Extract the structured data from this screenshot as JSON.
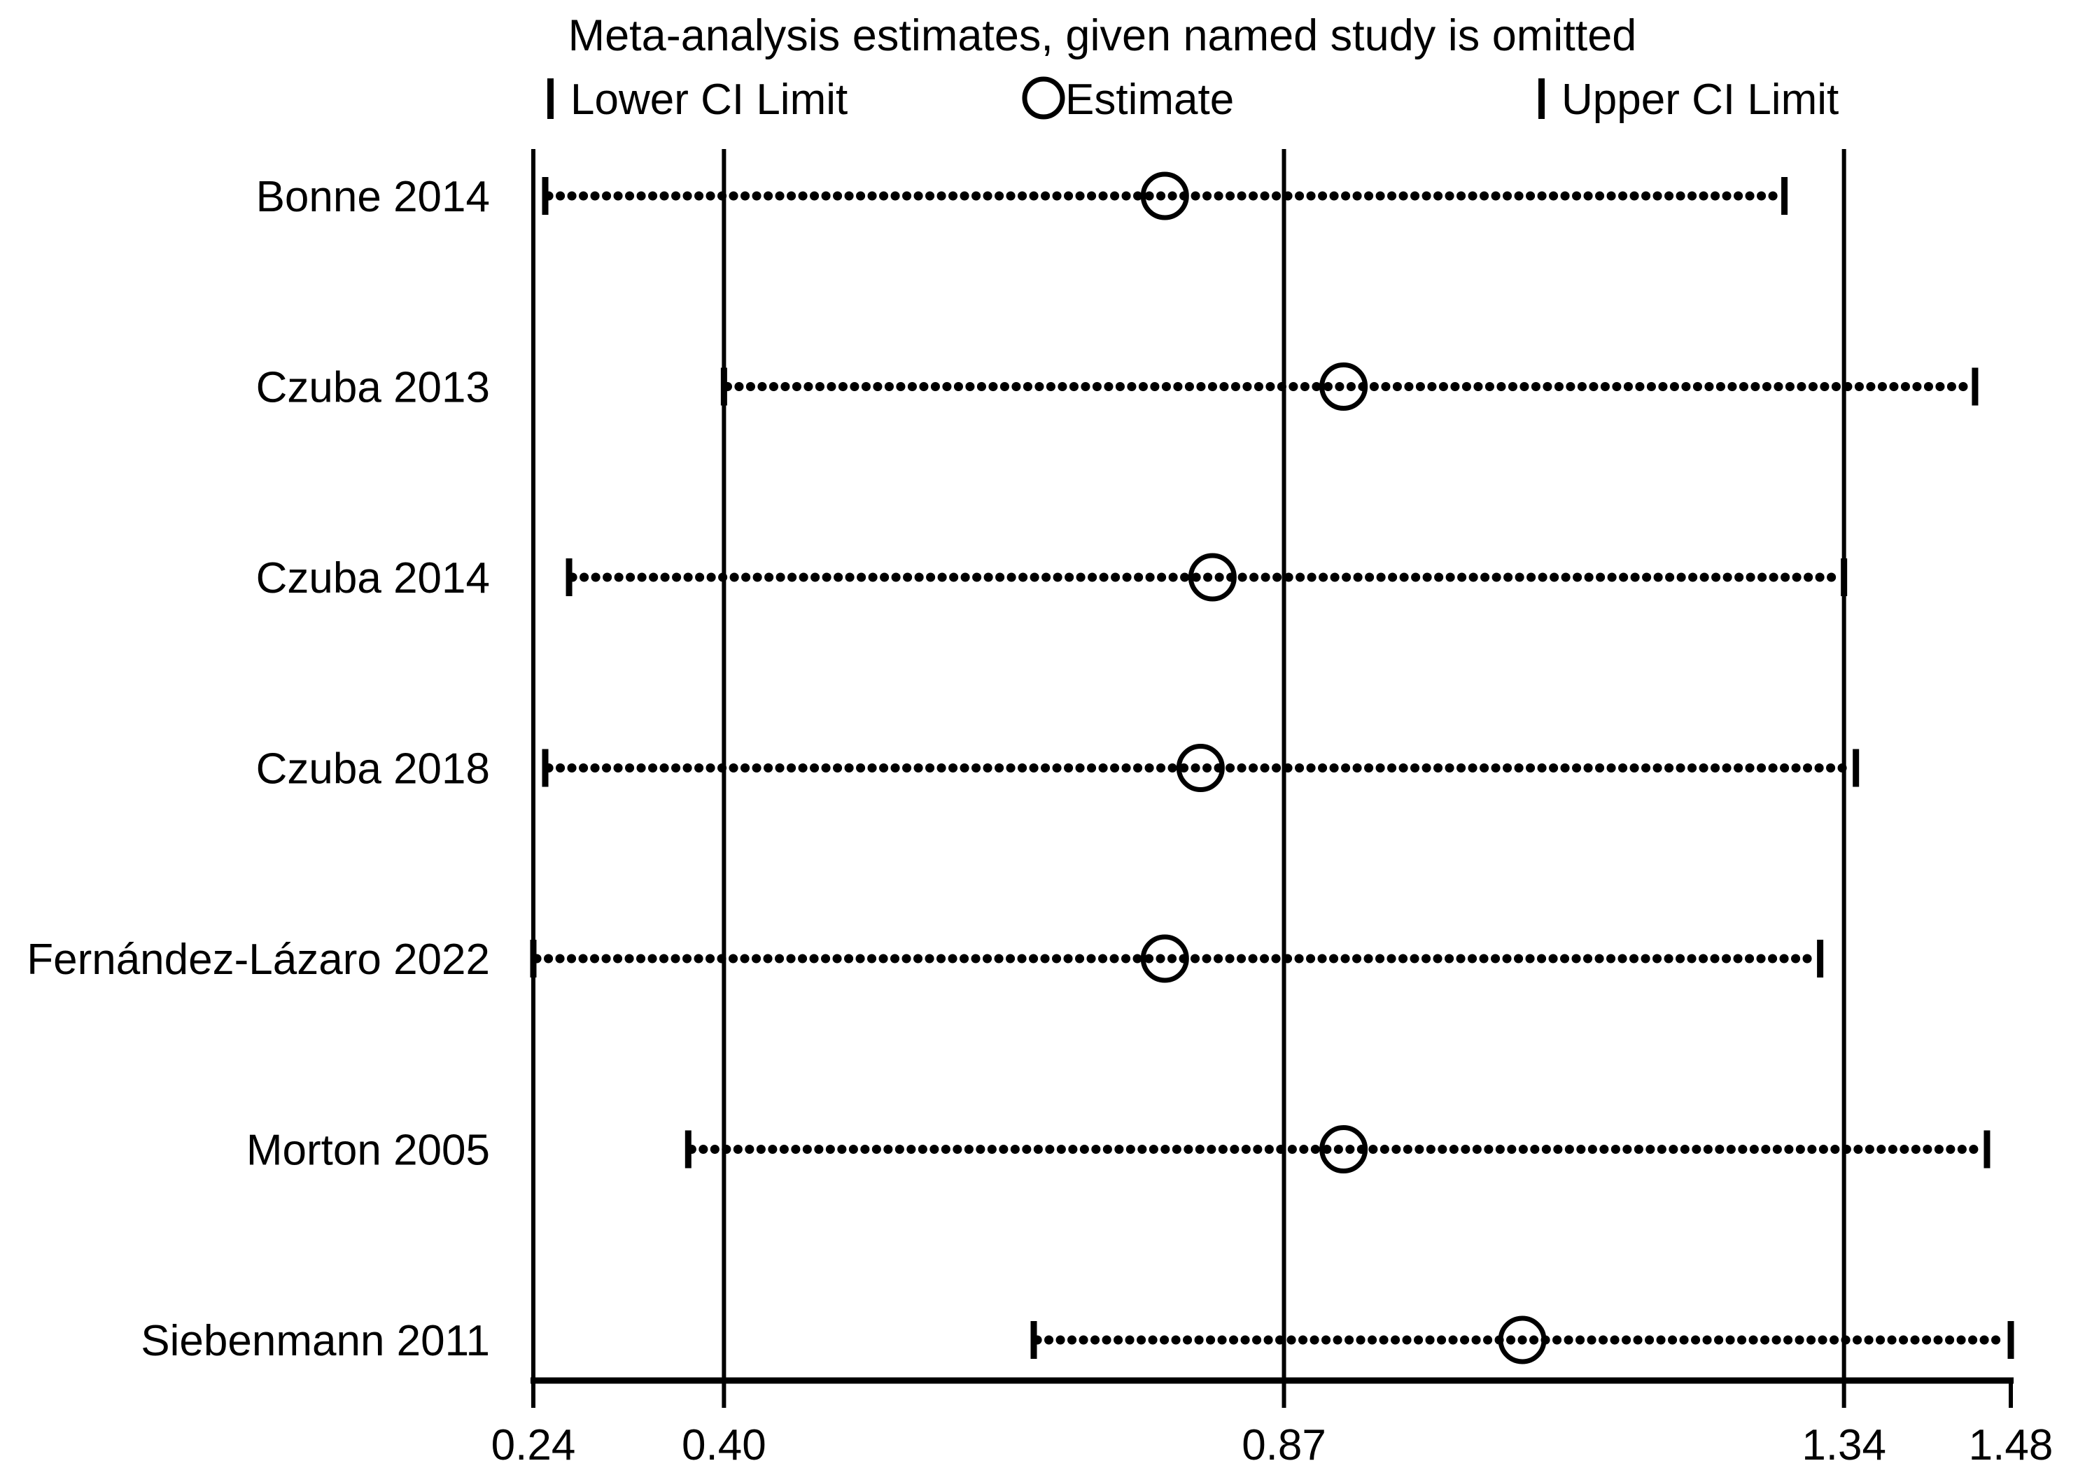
{
  "title": "Meta-analysis estimates, given named study is omitted",
  "legend": {
    "lower_label": "Lower CI Limit",
    "estimate_label": "Estimate",
    "upper_label": "Upper CI Limit"
  },
  "colors": {
    "foreground": "#000000",
    "background": "#ffffff"
  },
  "chart_data": {
    "type": "scatter",
    "subtype": "leave-one-out-forest",
    "title": "Meta-analysis estimates, given named study is omitted",
    "xlim": [
      0.24,
      1.48
    ],
    "xticks": [
      "0.24",
      "0.40",
      "0.87",
      "1.34",
      "1.48"
    ],
    "reference_lines": [
      0.24,
      0.4,
      0.87,
      1.34
    ],
    "overall": {
      "lower": 0.4,
      "estimate": 0.87,
      "upper": 1.34
    },
    "grid": "vertical-reference-lines-only",
    "legend_position": "top",
    "rows": [
      {
        "study": "Bonne 2014",
        "lower": 0.25,
        "estimate": 0.77,
        "upper": 1.29
      },
      {
        "study": "Czuba 2013",
        "lower": 0.4,
        "estimate": 0.92,
        "upper": 1.45
      },
      {
        "study": "Czuba 2014",
        "lower": 0.27,
        "estimate": 0.81,
        "upper": 1.34
      },
      {
        "study": "Czuba 2018",
        "lower": 0.25,
        "estimate": 0.8,
        "upper": 1.35
      },
      {
        "study": "Fernández-Lázaro 2022",
        "lower": 0.24,
        "estimate": 0.77,
        "upper": 1.32
      },
      {
        "study": "Morton 2005",
        "lower": 0.37,
        "estimate": 0.92,
        "upper": 1.46
      },
      {
        "study": "Siebenmann 2011",
        "lower": 0.66,
        "estimate": 1.07,
        "upper": 1.48
      }
    ]
  }
}
